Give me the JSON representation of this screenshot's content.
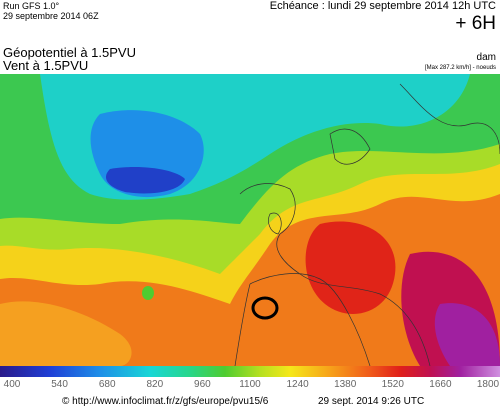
{
  "header": {
    "run": "Run GFS 1.0°",
    "run_date": "29 septembre 2014 06Z",
    "echeance": "Echéance : lundi 29 septembre 2014 12h UTC",
    "lead": "+ 6H"
  },
  "titles": {
    "geopotential": "Géopotentiel à 1.5PVU",
    "wind": "Vent à 1.5PVU"
  },
  "units": {
    "unit": "dam",
    "max": "[Max 287.2 km/h] - noeuds"
  },
  "colorbar": {
    "ticks": [
      400,
      540,
      680,
      820,
      960,
      1100,
      1240,
      1380,
      1520,
      1660,
      1800
    ]
  },
  "footer": {
    "url": "© http://www.infoclimat.fr/z/gfs/europe/pvu15/6",
    "timestamp": "29 sept. 2014  9:26 UTC"
  }
}
